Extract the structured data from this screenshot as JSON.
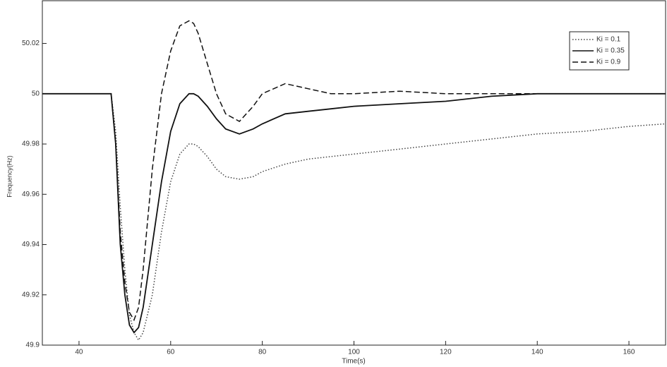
{
  "chart_data": {
    "type": "line",
    "x_label": "Time(s)",
    "y_label": "Frequency(Hz)",
    "x": [
      32,
      47,
      48,
      49,
      50,
      51,
      52,
      53,
      54,
      56,
      58,
      60,
      62,
      64,
      65,
      66,
      68,
      70,
      72,
      75,
      78,
      80,
      85,
      90,
      95,
      100,
      110,
      120,
      130,
      140,
      150,
      160,
      168
    ],
    "series": [
      {
        "name": "Ki = 0.1",
        "color": "#444444",
        "style": "dotted",
        "values": [
          50,
          50,
          49.985,
          49.955,
          49.93,
          49.912,
          49.905,
          49.902,
          49.905,
          49.92,
          49.945,
          49.965,
          49.976,
          49.98,
          49.98,
          49.979,
          49.975,
          49.97,
          49.967,
          49.966,
          49.967,
          49.969,
          49.972,
          49.974,
          49.975,
          49.976,
          49.978,
          49.98,
          49.982,
          49.984,
          49.985,
          49.987,
          49.988
        ]
      },
      {
        "name": "Ki = 0.35",
        "color": "#111111",
        "style": "solid",
        "values": [
          50,
          50,
          49.98,
          49.94,
          49.92,
          49.908,
          49.905,
          49.907,
          49.915,
          49.94,
          49.965,
          49.985,
          49.996,
          50,
          50,
          49.999,
          49.995,
          49.99,
          49.986,
          49.984,
          49.986,
          49.988,
          49.992,
          49.993,
          49.994,
          49.995,
          49.996,
          49.997,
          49.999,
          50,
          50,
          50,
          50
        ]
      },
      {
        "name": "Ki = 0.9",
        "color": "#111111",
        "style": "dashed",
        "values": [
          50,
          50,
          49.98,
          49.945,
          49.925,
          49.913,
          49.91,
          49.915,
          49.93,
          49.97,
          50,
          50.017,
          50.027,
          50.029,
          50.028,
          50.024,
          50.012,
          50,
          49.992,
          49.989,
          49.995,
          50,
          50.004,
          50.002,
          50,
          50,
          50.001,
          50,
          50,
          50,
          50,
          50,
          50
        ]
      }
    ],
    "xlim": [
      32,
      168
    ],
    "xticks": [
      40,
      60,
      80,
      100,
      120,
      140,
      160
    ],
    "ylim": [
      49.9,
      50.037
    ],
    "yticks": [
      49.9,
      49.92,
      49.94,
      49.96,
      49.98,
      50,
      50.02
    ],
    "grid": false,
    "legend": "top-right"
  }
}
